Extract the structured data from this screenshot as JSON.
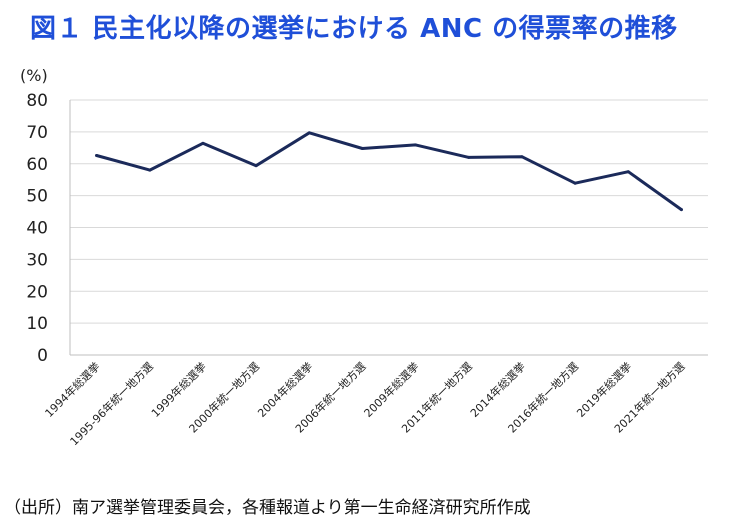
{
  "title": "図１ 民主化以降の選挙における ANC の得票率の推移",
  "unit": "(%)",
  "source": "（出所）南ア選挙管理委員会，各種報道より第一生命経済研究所作成",
  "chart_data": {
    "type": "line",
    "title": "図１ 民主化以降の選挙における ANC の得票率の推移",
    "ylabel": "(%)",
    "xlabel": "",
    "ylim": [
      0,
      80
    ],
    "yticks": [
      0,
      10,
      20,
      30,
      40,
      50,
      60,
      70,
      80
    ],
    "grid": true,
    "legend": "none",
    "categories": [
      "1994年総選挙",
      "1995-96年統一地方選",
      "1999年総選挙",
      "2000年統一地方選",
      "2004年総選挙",
      "2006年統一地方選",
      "2009年総選挙",
      "2011年統一地方選",
      "2014年総選挙",
      "2016年統一地方選",
      "2019年総選挙",
      "2021年統一地方選"
    ],
    "series": [
      {
        "values": [
          62.6,
          58.0,
          66.4,
          59.4,
          69.7,
          64.8,
          65.9,
          62.0,
          62.2,
          53.9,
          57.5,
          45.6
        ],
        "color": "#1b2a5a"
      }
    ]
  }
}
